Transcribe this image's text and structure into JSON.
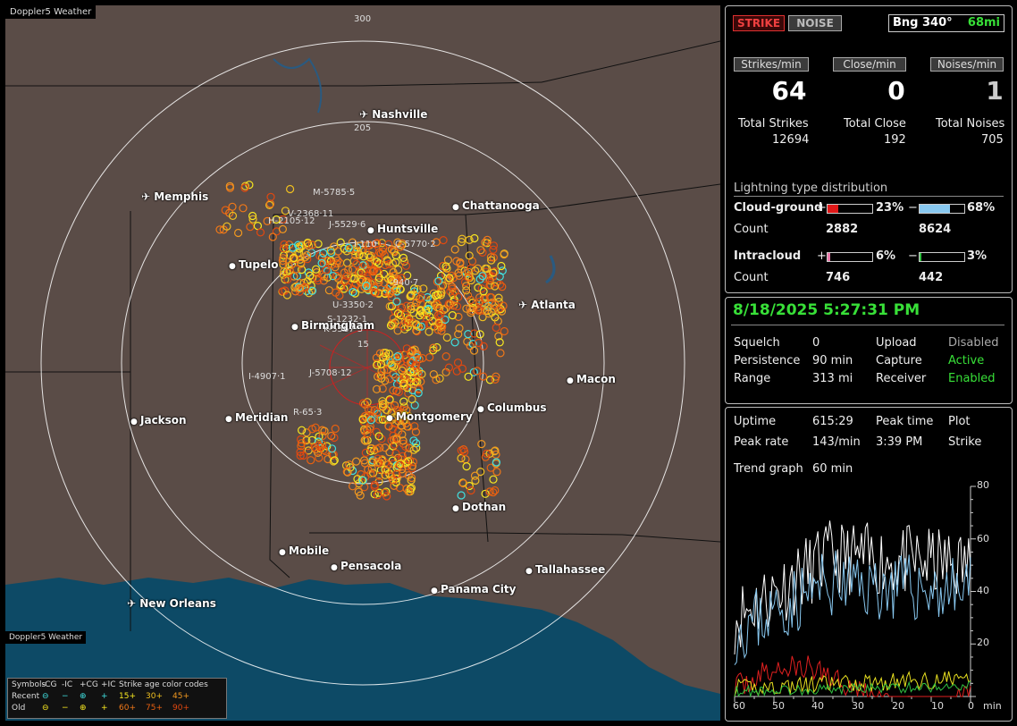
{
  "map": {
    "brand": "Doppler5 Weather",
    "brand_bottom": "Doppler5 Weather",
    "ring_labels": [
      "300",
      "205",
      "15"
    ],
    "cities": [
      {
        "name": "Nashville",
        "airport": true
      },
      {
        "name": "Memphis",
        "airport": true
      },
      {
        "name": "Chattanooga",
        "airport": false
      },
      {
        "name": "Huntsville",
        "airport": false
      },
      {
        "name": "Tupelo",
        "airport": false
      },
      {
        "name": "Atlanta",
        "airport": true
      },
      {
        "name": "Birmingham",
        "airport": false
      },
      {
        "name": "Macon",
        "airport": false
      },
      {
        "name": "Jackson",
        "airport": false
      },
      {
        "name": "Meridian",
        "airport": false
      },
      {
        "name": "Montgomery",
        "airport": false
      },
      {
        "name": "Columbus",
        "airport": false
      },
      {
        "name": "Dothan",
        "airport": false
      },
      {
        "name": "Mobile",
        "airport": false
      },
      {
        "name": "Pensacola",
        "airport": false
      },
      {
        "name": "Tallahassee",
        "airport": false
      },
      {
        "name": "Panama City",
        "airport": false
      },
      {
        "name": "New Orleans",
        "airport": true
      }
    ],
    "highway_labels": [
      "M-5785·5",
      "V-2368·11",
      "H-2105·12",
      "J-5529·6",
      "I-110",
      "C-5770·2",
      "-940·7",
      "U-3350·2",
      "S-1232·1",
      "K-5567·3",
      "I-4907·1",
      "J-5708·12",
      "R-65·3"
    ],
    "legend": {
      "row1": [
        "Symbols",
        "-CG",
        "-IC",
        "+CG",
        "+IC",
        "Strike age color codes"
      ],
      "row2": [
        "Recent",
        "⊖",
        "−",
        "⊕",
        "+",
        "15+",
        "30+",
        "45+"
      ],
      "row3": [
        "Old",
        "⊖",
        "−",
        "⊕",
        "+",
        "60+",
        "75+",
        "90+"
      ]
    }
  },
  "stats": {
    "mode_strike": "STRIKE",
    "mode_noise": "NOISE",
    "bearing": "Bng 340°",
    "bearing_dist": "68mi",
    "headers": [
      "Strikes/min",
      "Close/min",
      "Noises/min"
    ],
    "rates": [
      "64",
      "0",
      "1"
    ],
    "total_labels": [
      "Total Strikes",
      "Total Close",
      "Total Noises"
    ],
    "totals": [
      "12694",
      "192",
      "705"
    ],
    "dist_title": "Lightning type distribution",
    "cg_label": "Cloud-ground",
    "ic_label": "Intracloud",
    "count_label": "Count",
    "cg_pos_pct": "23%",
    "cg_neg_pct": "68%",
    "cg_pos_count": "2882",
    "cg_neg_count": "8624",
    "ic_pos_pct": "6%",
    "ic_neg_pct": "3%",
    "ic_pos_count": "746",
    "ic_neg_count": "442",
    "cg_pos_frac": 0.23,
    "cg_neg_frac": 0.68,
    "ic_pos_frac": 0.06,
    "ic_neg_frac": 0.03,
    "plus": "+",
    "minus": "−"
  },
  "status": {
    "datetime": "8/18/2025 5:27:31 PM",
    "rows": [
      [
        "Squelch",
        "0",
        "Upload",
        "Disabled"
      ],
      [
        "Persistence",
        "90 min",
        "Capture",
        "Active"
      ],
      [
        "Range",
        "313 mi",
        "Receiver",
        "Enabled"
      ]
    ]
  },
  "trend": {
    "uptime_label": "Uptime",
    "uptime": "615:29",
    "peak_time_label": "Peak time",
    "peak_time": "3:39 PM",
    "plot_label": "Plot",
    "plot": "Strike",
    "peak_rate_label": "Peak rate",
    "peak_rate": "143/min",
    "trend_label": "Trend graph",
    "trend": "60 min",
    "y_ticks": [
      "80",
      "60",
      "40",
      "20"
    ],
    "x_ticks": [
      "60",
      "50",
      "40",
      "30",
      "20",
      "10",
      "0",
      "min"
    ]
  },
  "colors": {
    "accent_green": "#38e038",
    "strike_red": "#e03030",
    "bar_blue": "#88c8f0"
  }
}
